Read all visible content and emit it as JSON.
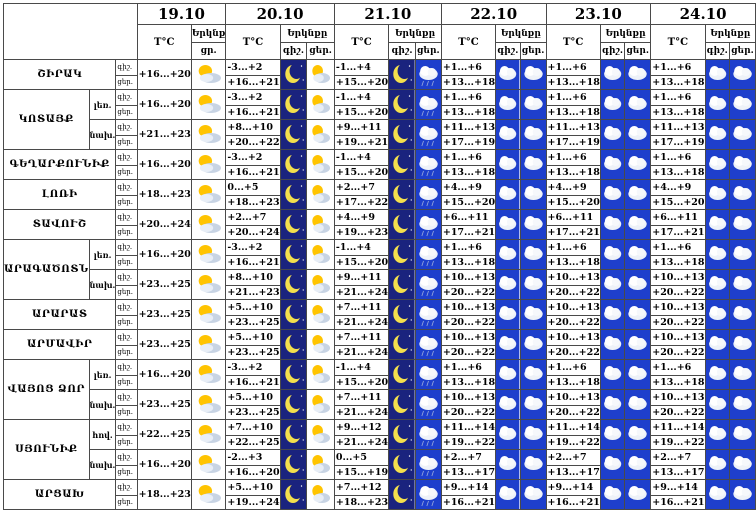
{
  "dates": [
    "19.10",
    "20.10",
    "21.10",
    "22.10",
    "23.10",
    "24.10"
  ],
  "header": {
    "temp_label": "T°C",
    "weather_label": "Երկնք",
    "sky_label": "Երկնքը",
    "day_label": "ցեր.",
    "day_short": "ցր.",
    "night_label": "գիշ."
  },
  "day_night": {
    "night": "գիշ.",
    "day": "ցեր."
  },
  "regions": [
    {
      "name": "ՇԻՐԱԿ",
      "rows": [
        {
          "sub": "",
          "d1": "+16...+20",
          "d2n": "-3...+2",
          "d2d": "+16...+21",
          "d3n": "-1...+4",
          "d3d": "+15...+20",
          "d4n": "+1...+6",
          "d4d": "+13...+18",
          "d5n": "+1...+6",
          "d5d": "+13...+18",
          "d6n": "+1...+6",
          "d6d": "+13...+18"
        }
      ]
    },
    {
      "name": "ԿՈՏԱՅՔ",
      "rows": [
        {
          "sub": "լեռ.",
          "d1": "+16...+20",
          "d2n": "-3...+2",
          "d2d": "+16...+21",
          "d3n": "-1...+4",
          "d3d": "+15...+20",
          "d4n": "+1...+6",
          "d4d": "+13...+18",
          "d5n": "+1...+6",
          "d5d": "+13...+18",
          "d6n": "+1...+6",
          "d6d": "+13...+18"
        },
        {
          "sub": "նախ.",
          "d1": "+21...+23",
          "d2n": "+8...+10",
          "d2d": "+20...+22",
          "d3n": "+9...+11",
          "d3d": "+19...+21",
          "d4n": "+11...+13",
          "d4d": "+17...+19",
          "d5n": "+11...+13",
          "d5d": "+17...+19",
          "d6n": "+11...+13",
          "d6d": "+17...+19"
        }
      ]
    },
    {
      "name": "ԳԵՂԱՐՔՈՒՆԻՔ",
      "rows": [
        {
          "sub": "",
          "d1": "+16...+20",
          "d2n": "-3...+2",
          "d2d": "+16...+21",
          "d3n": "-1...+4",
          "d3d": "+15...+20",
          "d4n": "+1...+6",
          "d4d": "+13...+18",
          "d5n": "+1...+6",
          "d5d": "+13...+18",
          "d6n": "+1...+6",
          "d6d": "+13...+18"
        }
      ]
    },
    {
      "name": "ԼՈՌԻ",
      "rows": [
        {
          "sub": "",
          "d1": "+18...+23",
          "d2n": "0...+5",
          "d2d": "+18...+23",
          "d3n": "+2...+7",
          "d3d": "+17...+22",
          "d4n": "+4...+9",
          "d4d": "+15...+20",
          "d5n": "+4...+9",
          "d5d": "+15...+20",
          "d6n": "+4...+9",
          "d6d": "+15...+20"
        }
      ]
    },
    {
      "name": "ՏԱՎՈՒՇ",
      "rows": [
        {
          "sub": "",
          "d1": "+20...+24",
          "d2n": "+2...+7",
          "d2d": "+20...+24",
          "d3n": "+4...+9",
          "d3d": "+19...+23",
          "d4n": "+6...+11",
          "d4d": "+17...+21",
          "d5n": "+6...+11",
          "d5d": "+17...+21",
          "d6n": "+6...+11",
          "d6d": "+17...+21"
        }
      ]
    },
    {
      "name": "ԱՐԱԳԱԾՈՏՆ",
      "rows": [
        {
          "sub": "լեռ.",
          "d1": "+16...+20",
          "d2n": "-3...+2",
          "d2d": "+16...+21",
          "d3n": "-1...+4",
          "d3d": "+15...+20",
          "d4n": "+1...+6",
          "d4d": "+13...+18",
          "d5n": "+1...+6",
          "d5d": "+13...+18",
          "d6n": "+1...+6",
          "d6d": "+13...+18"
        },
        {
          "sub": "նախ.",
          "d1": "+23...+25",
          "d2n": "+8...+10",
          "d2d": "+21...+23",
          "d3n": "+9...+11",
          "d3d": "+21...+24",
          "d4n": "+10...+13",
          "d4d": "+20...+22",
          "d5n": "+10...+13",
          "d5d": "+20...+22",
          "d6n": "+10...+13",
          "d6d": "+20...+22"
        }
      ]
    },
    {
      "name": "ԱՐԱՐԱՏ",
      "rows": [
        {
          "sub": "",
          "d1": "+23...+25",
          "d2n": "+5...+10",
          "d2d": "+23...+25",
          "d3n": "+7...+11",
          "d3d": "+21...+24",
          "d4n": "+10...+13",
          "d4d": "+20...+22",
          "d5n": "+10...+13",
          "d5d": "+20...+22",
          "d6n": "+10...+13",
          "d6d": "+20...+22"
        }
      ]
    },
    {
      "name": "ԱՐՄԱՎԻՐ",
      "rows": [
        {
          "sub": "",
          "d1": "+23...+25",
          "d2n": "+5...+10",
          "d2d": "+23...+25",
          "d3n": "+7...+11",
          "d3d": "+21...+24",
          "d4n": "+10...+13",
          "d4d": "+20...+22",
          "d5n": "+10...+13",
          "d5d": "+20...+22",
          "d6n": "+10...+13",
          "d6d": "+20...+22"
        }
      ]
    },
    {
      "name": "ՎԱՅՈՑ ՁՈՐ",
      "rows": [
        {
          "sub": "լեռ.",
          "d1": "+16...+20",
          "d2n": "-3...+2",
          "d2d": "+16...+21",
          "d3n": "-1...+4",
          "d3d": "+15...+20",
          "d4n": "+1...+6",
          "d4d": "+13...+18",
          "d5n": "+1...+6",
          "d5d": "+13...+18",
          "d6n": "+1...+6",
          "d6d": "+13...+18"
        },
        {
          "sub": "նախ.",
          "d1": "+23...+25",
          "d2n": "+5...+10",
          "d2d": "+23...+25",
          "d3n": "+7...+11",
          "d3d": "+21...+24",
          "d4n": "+10...+13",
          "d4d": "+20...+22",
          "d5n": "+10...+13",
          "d5d": "+20...+22",
          "d6n": "+10...+13",
          "d6d": "+20...+22"
        }
      ]
    },
    {
      "name": "ՍՅՈՒՆԻՔ",
      "rows": [
        {
          "sub": "հով.",
          "d1": "+22...+25",
          "d2n": "+7...+10",
          "d2d": "+22...+25",
          "d3n": "+9...+12",
          "d3d": "+21...+24",
          "d4n": "+11...+14",
          "d4d": "+19...+22",
          "d5n": "+11...+14",
          "d5d": "+19...+22",
          "d6n": "+11...+14",
          "d6d": "+19...+22"
        },
        {
          "sub": "նախ.",
          "d1": "+16...+20",
          "d2n": "-2...+3",
          "d2d": "+16...+20",
          "d3n": "0...+5",
          "d3d": "+15...+19",
          "d4n": "+2...+7",
          "d4d": "+13...+17",
          "d5n": "+2...+7",
          "d5d": "+13...+17",
          "d6n": "+2...+7",
          "d6d": "+13...+17"
        }
      ]
    },
    {
      "name": "ԱՐՑԱԽ",
      "rows": [
        {
          "sub": "",
          "d1": "+18...+23",
          "d2n": "+5...+10",
          "d2d": "+19...+24",
          "d3n": "+7...+12",
          "d3d": "+18...+23",
          "d4n": "+9...+14",
          "d4d": "+16...+21",
          "d5n": "+9...+14",
          "d5d": "+16...+21",
          "d6n": "+9...+14",
          "d6d": "+16...+21"
        }
      ]
    }
  ],
  "icons": {
    "d1": "sun-behind-cloud-icon",
    "d2_night": "moon-icon",
    "d2_day": "sun-behind-cloud-icon",
    "d3_night": "moon-icon",
    "d3_day": "rain-cloud-icon",
    "d4_night": "cloud-icon",
    "d4_day": "cloud-icon",
    "d5_night": "cloud-icon",
    "d5_day": "cloud-icon",
    "d6_night": "cloud-icon",
    "d6_day": "cloud-icon"
  },
  "colors": {
    "night_bg": "#1a237e",
    "cloud_bg": "#1e3fcc",
    "sun": "#ffc400",
    "border": "#4a4a4a"
  }
}
